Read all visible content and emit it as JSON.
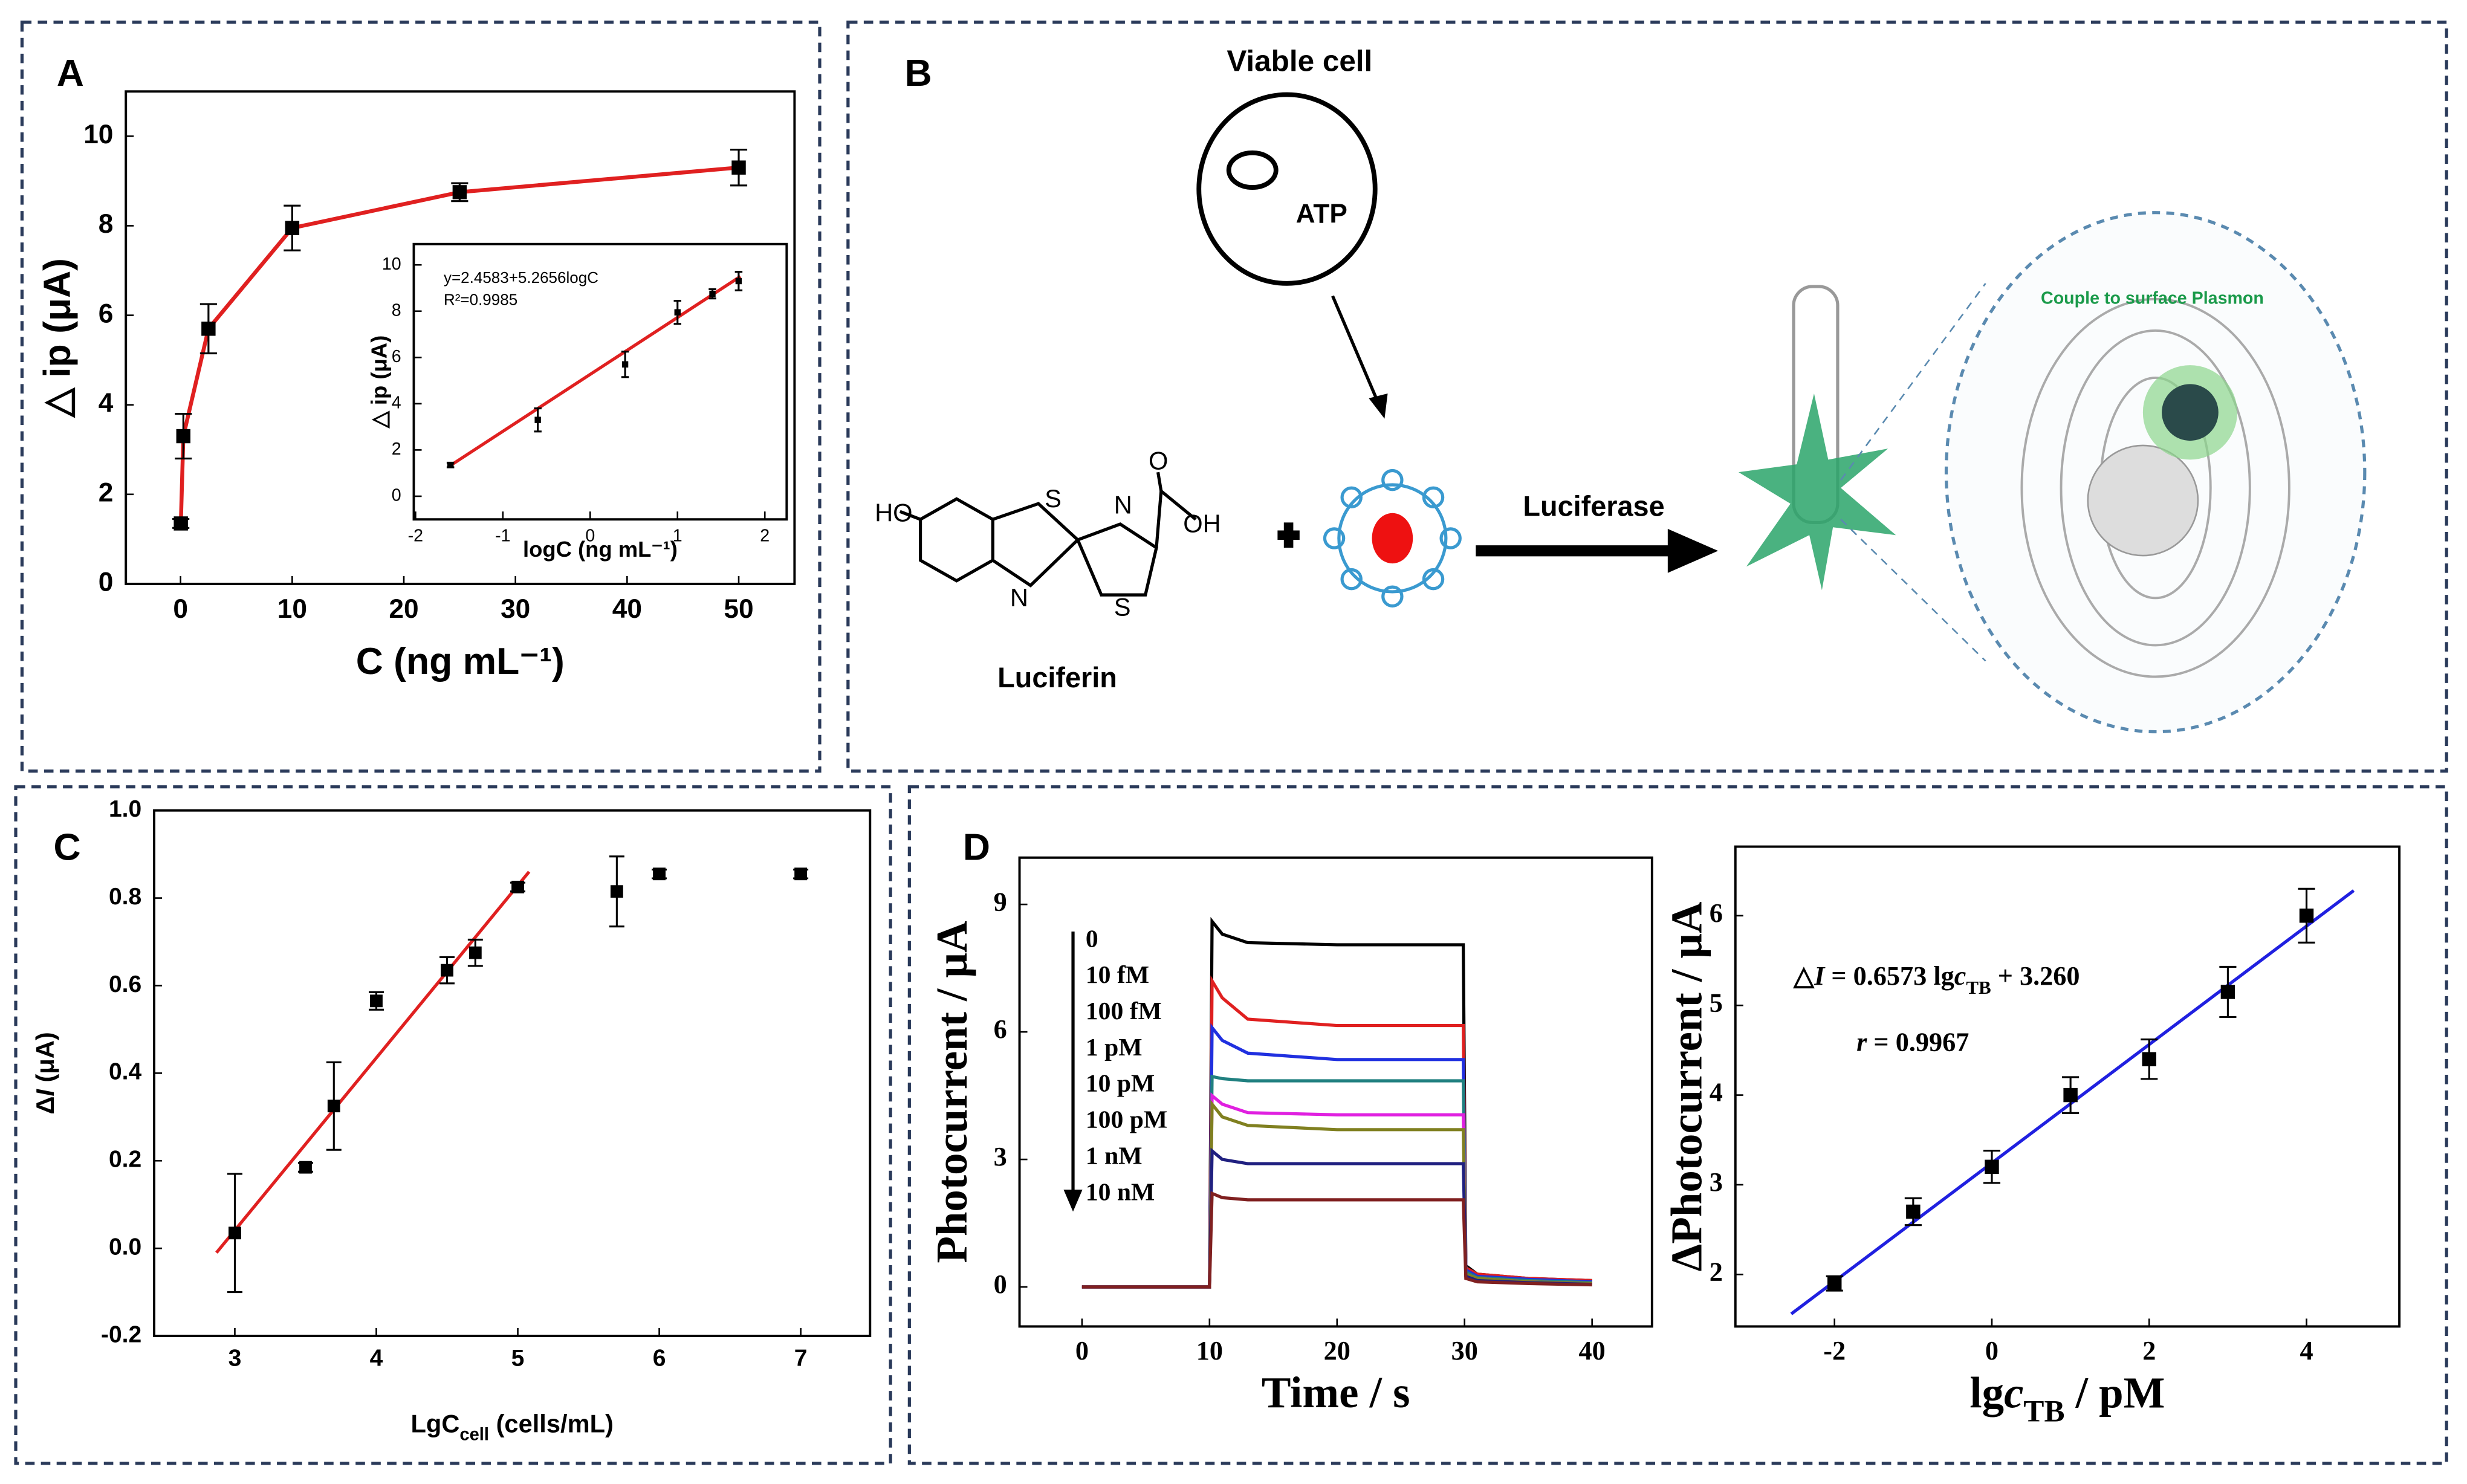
{
  "chart_data": [
    {
      "type": "scatter",
      "panel": "A",
      "x_label": "C (ng mL⁻¹)",
      "y_label": "△ ip (μA)",
      "x": [
        0.025,
        0.25,
        2.5,
        10,
        25,
        50
      ],
      "values": [
        1.35,
        3.3,
        5.7,
        7.95,
        8.75,
        9.3
      ],
      "errors": [
        0.1,
        0.5,
        0.55,
        0.5,
        0.2,
        0.4
      ],
      "connect": true,
      "color": "#e02020",
      "marker_color": "#000000",
      "xlim": [
        -4.9,
        55
      ],
      "ylim": [
        0,
        11
      ],
      "xticks": [
        0,
        10,
        20,
        30,
        40,
        50
      ],
      "yticks": [
        0,
        2,
        4,
        6,
        8,
        10
      ]
    },
    {
      "type": "scatter",
      "x_label": "logC (ng mL⁻¹)",
      "y_label": "△ ip (μA)",
      "annotations": [
        "y=2.4583+5.2656logC",
        "R²=0.9985"
      ],
      "x": [
        -1.6,
        -0.6,
        0.4,
        1,
        1.4,
        1.7
      ],
      "values": [
        1.35,
        3.3,
        5.7,
        7.95,
        8.75,
        9.3
      ],
      "errors": [
        0.1,
        0.5,
        0.55,
        0.5,
        0.2,
        0.4
      ],
      "fit": {
        "x": [
          -1.6,
          1.72
        ],
        "y": [
          1.33,
          9.5
        ]
      },
      "color": "#e02020",
      "marker_color": "#000000",
      "xlim": [
        -2.02,
        2.25
      ],
      "ylim": [
        -1,
        10.9
      ],
      "xticks": [
        -2,
        -1,
        0,
        1,
        2
      ],
      "yticks": [
        0,
        2,
        4,
        6,
        8,
        10
      ]
    },
    {
      "type": "scatter",
      "panel": "C",
      "x_label": [
        {
          "text": "LgC"
        },
        {
          "text": "cell",
          "style": "sub"
        },
        {
          "text": " (cells/mL)"
        }
      ],
      "y_label": [
        {
          "text": "Δ"
        },
        {
          "text": "I",
          "style": "italic"
        },
        {
          "text": " (μA)"
        }
      ],
      "x": [
        3,
        3.5,
        3.7,
        4,
        4.5,
        4.7,
        5,
        5.7,
        6,
        7
      ],
      "values": [
        0.035,
        0.185,
        0.325,
        0.565,
        0.635,
        0.675,
        0.825,
        0.815,
        0.855,
        0.855
      ],
      "errors": [
        0.135,
        0.01,
        0.1,
        0.02,
        0.03,
        0.03,
        0.01,
        0.08,
        0.01,
        0.01
      ],
      "fit": {
        "x": [
          2.87,
          5.08
        ],
        "y": [
          -0.01,
          0.86
        ]
      },
      "color": "#e02020",
      "marker_color": "#000000",
      "xlim": [
        2.43,
        7.49
      ],
      "ylim": [
        -0.2,
        1.0
      ],
      "xticks": [
        3,
        4,
        5,
        6,
        7
      ],
      "yticks": [
        -0.2,
        {
          "value": 0,
          "label": "0.0"
        },
        0.2,
        0.4,
        0.6,
        0.8,
        {
          "value": 1,
          "label": "1.0"
        }
      ]
    },
    {
      "type": "line",
      "panel": "D",
      "x_label": "Time / s",
      "y_label": "Photocurrent / μA",
      "x": [
        0,
        10,
        10.2,
        11,
        13,
        20,
        29.9,
        30.1,
        31,
        35,
        40
      ],
      "series": [
        {
          "name": "0",
          "color": "#000000",
          "values": [
            0,
            0,
            8.6,
            8.3,
            8.1,
            8.05,
            8.05,
            0.5,
            0.3,
            0.2,
            0.15
          ]
        },
        {
          "name": "10 fM",
          "color": "#e02020",
          "values": [
            0,
            0,
            7.2,
            6.8,
            6.3,
            6.15,
            6.15,
            0.45,
            0.3,
            0.2,
            0.15
          ]
        },
        {
          "name": "100 fM",
          "color": "#2030e0",
          "values": [
            0,
            0,
            6.1,
            5.8,
            5.5,
            5.35,
            5.35,
            0.4,
            0.25,
            0.18,
            0.12
          ]
        },
        {
          "name": "1 pM",
          "color": "#208080",
          "values": [
            0,
            0,
            4.95,
            4.9,
            4.85,
            4.85,
            4.85,
            0.35,
            0.22,
            0.15,
            0.1
          ]
        },
        {
          "name": "10 pM",
          "color": "#e020e0",
          "values": [
            0,
            0,
            4.5,
            4.3,
            4.1,
            4.05,
            4.05,
            0.3,
            0.2,
            0.12,
            0.08
          ]
        },
        {
          "name": "100 pM",
          "color": "#808020",
          "values": [
            0,
            0,
            4.3,
            4.0,
            3.8,
            3.7,
            3.7,
            0.3,
            0.2,
            0.12,
            0.08
          ]
        },
        {
          "name": "1 nM",
          "color": "#202080",
          "values": [
            0,
            0,
            3.2,
            3.0,
            2.9,
            2.9,
            2.9,
            0.25,
            0.15,
            0.1,
            0.06
          ]
        },
        {
          "name": "10 nM",
          "color": "#802020",
          "values": [
            0,
            0,
            2.2,
            2.1,
            2.05,
            2.05,
            2.05,
            0.2,
            0.12,
            0.08,
            0.05
          ]
        }
      ],
      "xlim": [
        -4.9,
        44.7
      ],
      "ylim": [
        -0.93,
        10.1
      ],
      "xticks": [
        0,
        10,
        20,
        30,
        40
      ],
      "yticks": [
        0,
        3,
        6,
        9
      ]
    },
    {
      "type": "scatter",
      "x_label": [
        {
          "text": "lg"
        },
        {
          "text": "c",
          "style": "italic"
        },
        {
          "text": "TB",
          "style": "sub"
        },
        {
          "text": " / pM"
        }
      ],
      "y_label": "ΔPhotocurrent / μA",
      "annotations": [
        [
          {
            "text": "△"
          },
          {
            "text": "I",
            "style": "italic"
          },
          {
            "text": " = 0.6573 lg"
          },
          {
            "text": "c",
            "style": "italic"
          },
          {
            "text": "TB",
            "style": "sub"
          },
          {
            "text": " + 3.260"
          }
        ],
        [
          {
            "text": "r",
            "style": "italic"
          },
          {
            "text": " = 0.9967"
          }
        ]
      ],
      "x": [
        -2,
        -1,
        0,
        1,
        2,
        3,
        4
      ],
      "values": [
        1.9,
        2.7,
        3.2,
        4.0,
        4.4,
        5.15,
        6.0
      ],
      "errors": [
        0.08,
        0.15,
        0.18,
        0.2,
        0.22,
        0.28,
        0.3
      ],
      "fit": {
        "x": [
          -2.55,
          4.6
        ],
        "y": [
          1.56,
          6.28
        ]
      },
      "color": "#2020e0",
      "marker_color": "#000000",
      "xlim": [
        -3.26,
        5.18
      ],
      "ylim": [
        1.42,
        6.77
      ],
      "xticks": [
        -2,
        0,
        2,
        4
      ],
      "yticks": [
        2,
        3,
        4,
        5,
        6
      ]
    }
  ],
  "diagram": {
    "panel": "B",
    "cell": "Viable cell",
    "atp": "ATP",
    "enzyme": "Luciferase",
    "substrate": "Luciferin",
    "plasmon": "Couple to surface Plasmon",
    "atoms": [
      "HO",
      "S",
      "N",
      "N",
      "S",
      "O",
      "OH"
    ]
  }
}
